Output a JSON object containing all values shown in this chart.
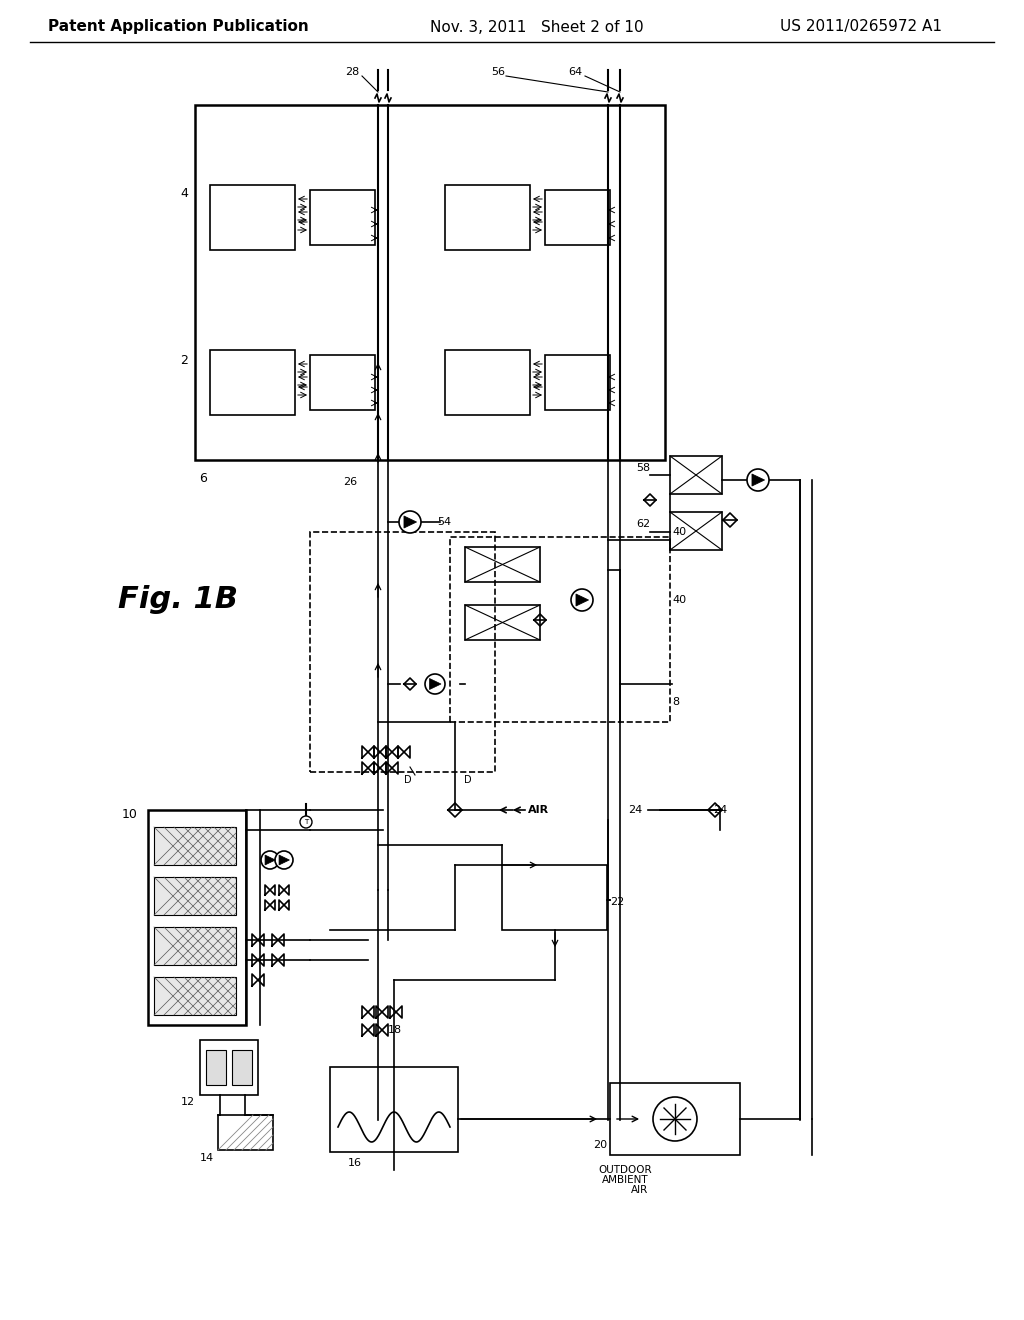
{
  "header_left": "Patent Application Publication",
  "header_mid": "Nov. 3, 2011   Sheet 2 of 10",
  "header_right": "US 2011/0265972 A1",
  "fig_label": "Fig. 1B",
  "bg_color": "#ffffff",
  "line_color": "#000000",
  "header_font_size": 11,
  "fig_label_font_size": 22
}
